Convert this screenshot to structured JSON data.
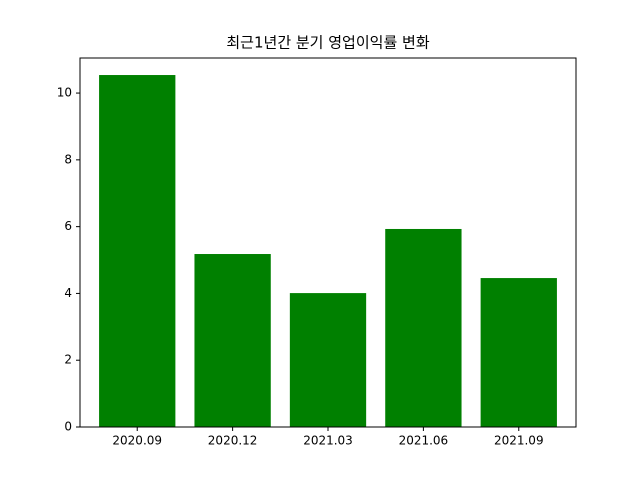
{
  "chart_data": {
    "type": "bar",
    "title": "최근1년간 분기 영업이익률 변화",
    "categories": [
      "2020.09",
      "2020.12",
      "2021.03",
      "2021.06",
      "2021.09"
    ],
    "values": [
      10.54,
      5.18,
      4.01,
      5.93,
      4.46
    ],
    "color": "#008000",
    "ylim": [
      0,
      11.05
    ],
    "yticks": [
      0,
      2,
      4,
      6,
      8,
      10
    ],
    "grid": false
  }
}
